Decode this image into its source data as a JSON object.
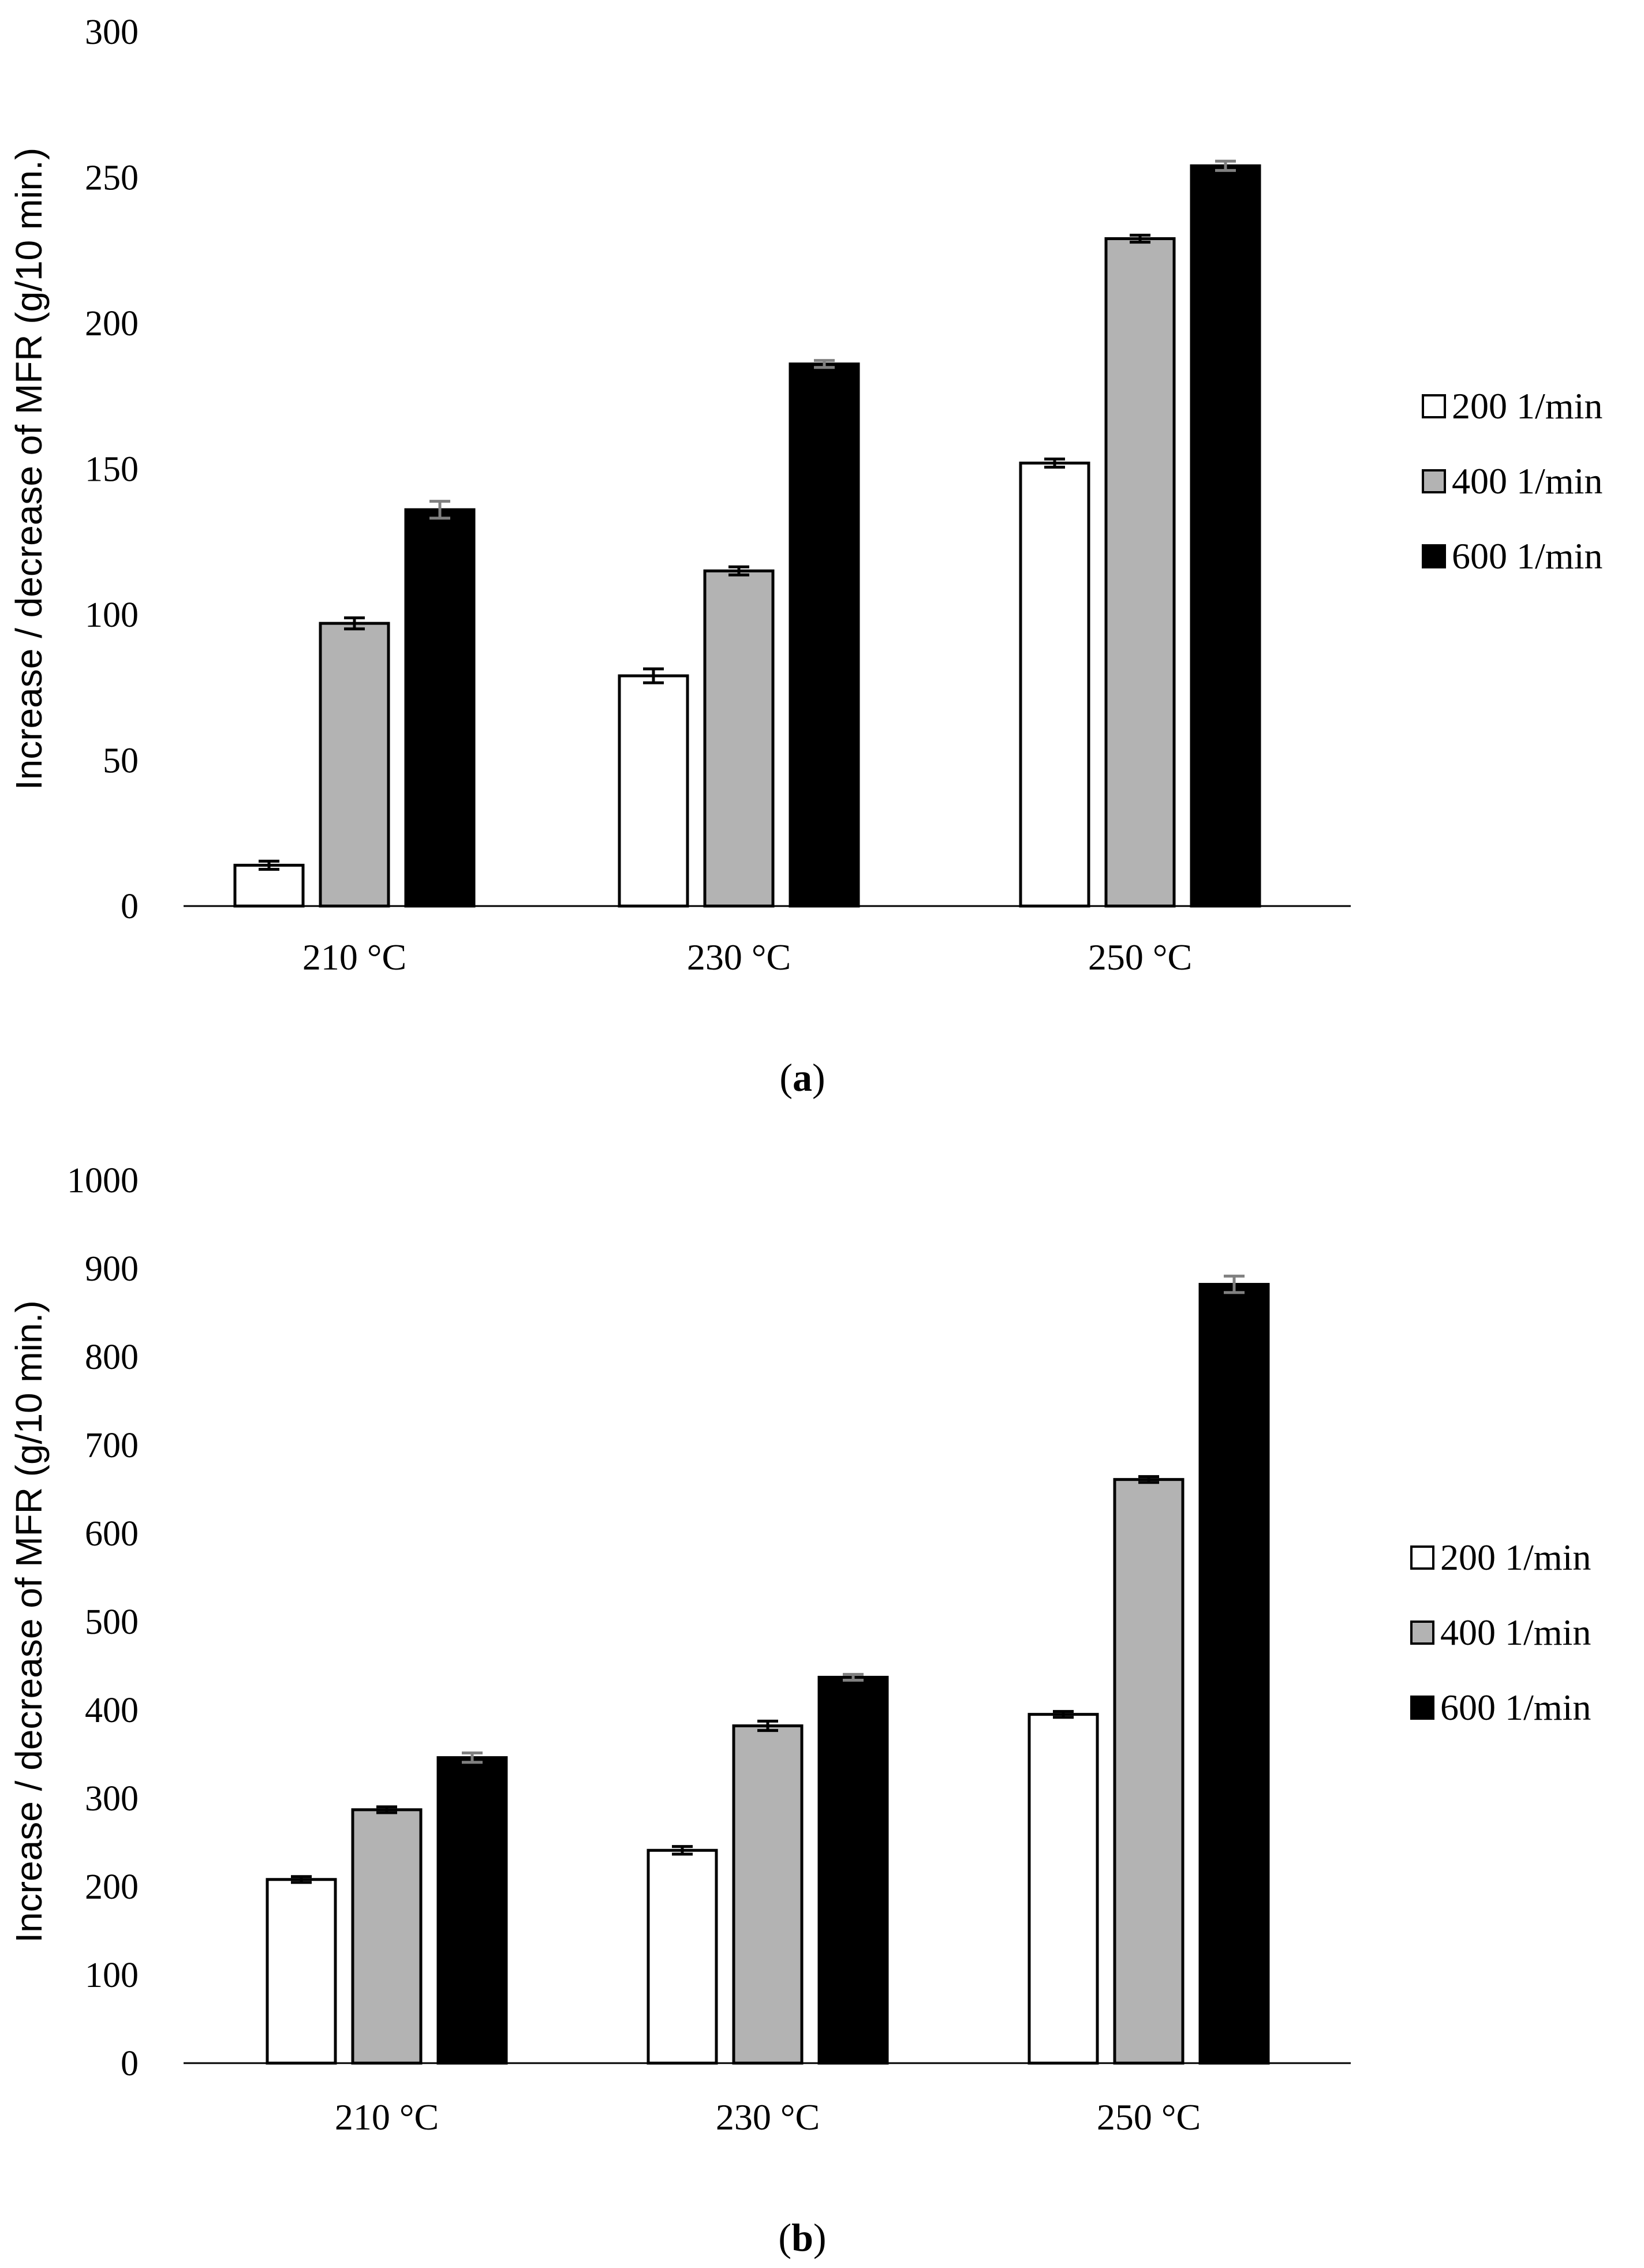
{
  "colors": {
    "s200": "#ffffff",
    "s400": "#b3b3b3",
    "s600": "#000000",
    "stroke": "#000000",
    "errorbar": "#808080"
  },
  "chart_data": [
    {
      "type": "bar",
      "caption_letter": "a",
      "title": "",
      "xlabel": "",
      "ylabel": "Increase / decrease of MFR (g/10 min.)",
      "ylim": [
        0,
        300
      ],
      "yticks": [
        "0",
        "50",
        "100",
        "150",
        "200",
        "250",
        "300"
      ],
      "ytick_values": [
        0,
        50,
        100,
        150,
        200,
        250,
        300
      ],
      "categories": [
        "210 °C",
        "230 °C",
        "250 °C"
      ],
      "legend_position": "right",
      "series": [
        {
          "name": "200 1/min",
          "values": [
            14,
            79,
            152
          ],
          "errors": [
            1,
            2,
            1
          ]
        },
        {
          "name": "400 1/min",
          "values": [
            97,
            115,
            229
          ],
          "errors": [
            1.5,
            1,
            0.8
          ]
        },
        {
          "name": "600 1/min",
          "values": [
            136,
            186,
            254
          ],
          "errors": [
            2.5,
            0.8,
            1.2
          ]
        }
      ]
    },
    {
      "type": "bar",
      "caption_letter": "b",
      "title": "",
      "xlabel": "",
      "ylabel": "Increase / decrease of MFR (g/10 min.)",
      "ylim": [
        0,
        1000
      ],
      "yticks": [
        "0",
        "100",
        "200",
        "300",
        "400",
        "500",
        "600",
        "700",
        "800",
        "900",
        "1000"
      ],
      "ytick_values": [
        0,
        100,
        200,
        300,
        400,
        500,
        600,
        700,
        800,
        900,
        1000
      ],
      "categories": [
        "210 °C",
        "230 °C",
        "250 °C"
      ],
      "legend_position": "right",
      "series": [
        {
          "name": "200 1/min",
          "values": [
            208,
            241,
            395
          ],
          "errors": [
            2,
            3,
            2
          ]
        },
        {
          "name": "400 1/min",
          "values": [
            287,
            382,
            661
          ],
          "errors": [
            2,
            4,
            2
          ]
        },
        {
          "name": "600 1/min",
          "values": [
            346,
            437,
            882
          ],
          "errors": [
            4,
            2,
            8
          ]
        }
      ]
    }
  ]
}
